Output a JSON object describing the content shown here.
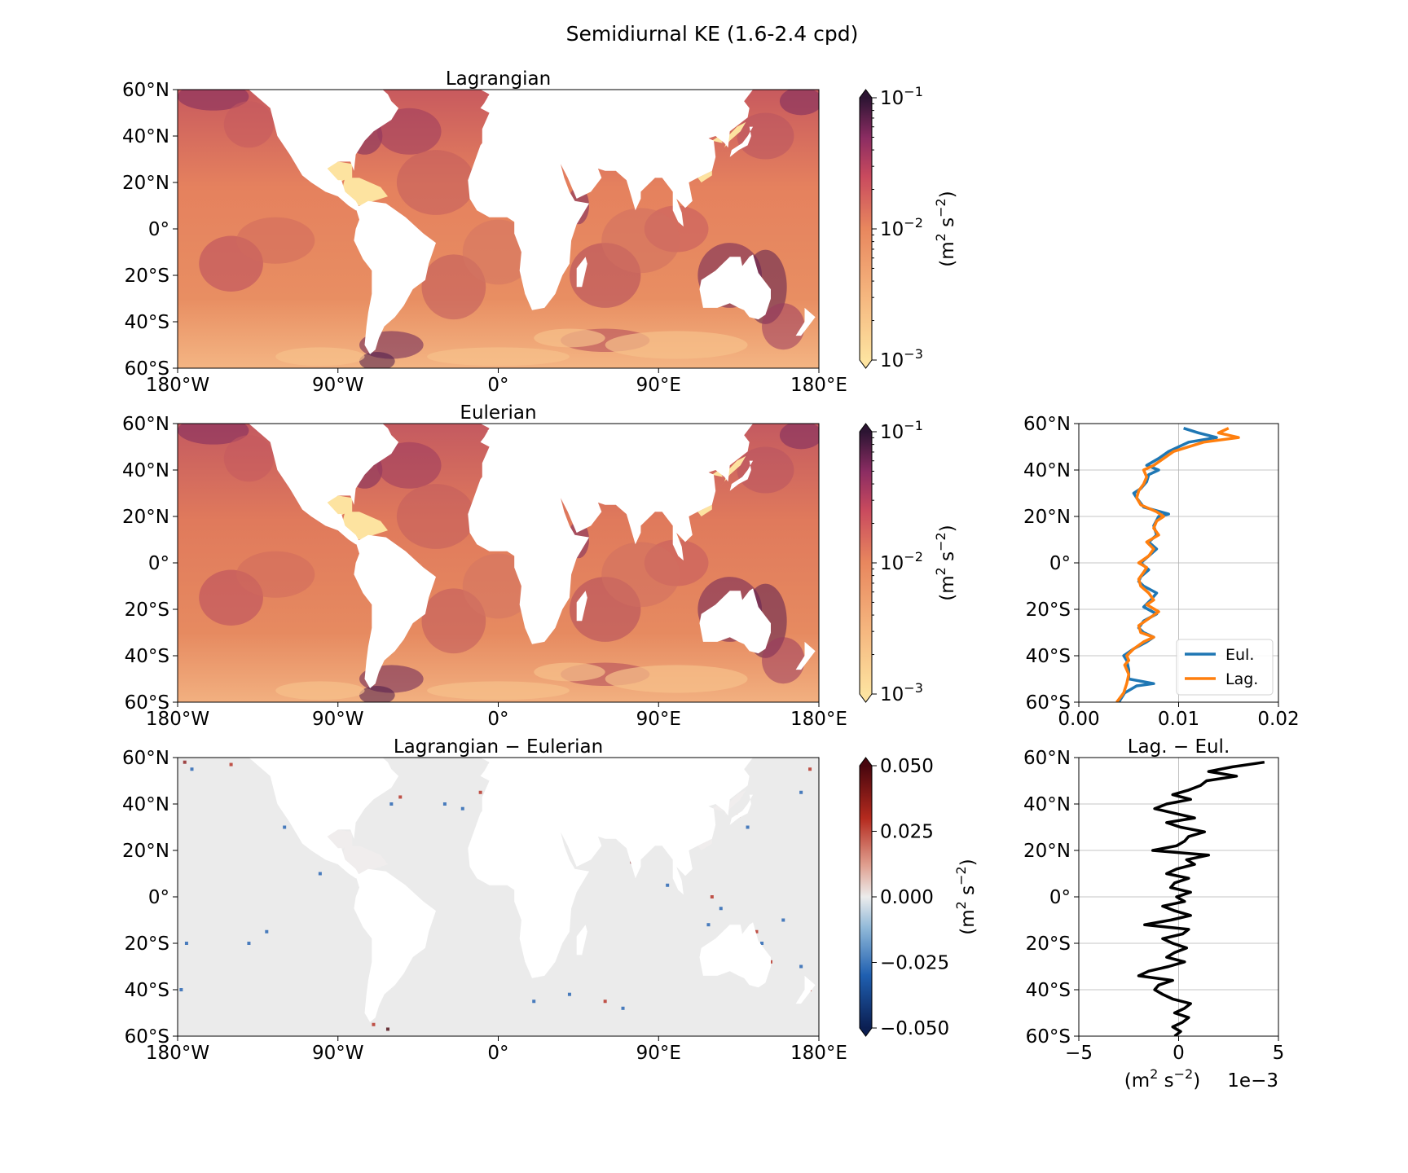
{
  "figure": {
    "suptitle": "Semidiurnal KE (1.6-2.4 cpd)"
  },
  "colors": {
    "eul": "#1f77b4",
    "lag": "#ff7f0e",
    "diff_line": "#000000",
    "ke_low": "#fde3a0",
    "ke_mid": "#e8875e",
    "ke_high": "#2c1432",
    "div_neg": "#0b1f52",
    "div_zero": "#ececec",
    "div_pos": "#48060e"
  },
  "ticks": {
    "lon": [
      "180°W",
      "90°W",
      "0°",
      "90°E",
      "180°E"
    ],
    "lat": [
      "60°N",
      "40°N",
      "20°N",
      "0°",
      "20°S",
      "40°S",
      "60°S"
    ]
  },
  "colorbars": {
    "ke": {
      "label_base": "(m",
      "label_sup1": "2",
      "label_mid": " s",
      "label_sup2": "−2",
      "label_end": ")",
      "ticks": [
        {
          "base": "10",
          "exp": "−1"
        },
        {
          "base": "10",
          "exp": "−2"
        },
        {
          "base": "10",
          "exp": "−3"
        }
      ]
    },
    "diff": {
      "label_base": "(m",
      "label_sup1": "2",
      "label_mid": " s",
      "label_sup2": "−2",
      "label_end": ")",
      "ticks": [
        "0.050",
        "0.025",
        "0.000",
        "−0.025",
        "−0.050"
      ]
    }
  },
  "chart_data": [
    {
      "type": "heatmap",
      "title": "Lagrangian",
      "x_range": [
        -180,
        180
      ],
      "y_range": [
        -60,
        60
      ],
      "colorscale": "log",
      "clim": [
        0.001,
        0.1
      ]
    },
    {
      "type": "heatmap",
      "title": "Eulerian",
      "x_range": [
        -180,
        180
      ],
      "y_range": [
        -60,
        60
      ],
      "colorscale": "log",
      "clim": [
        0.001,
        0.1
      ]
    },
    {
      "type": "heatmap",
      "title": "Lagrangian − Eulerian",
      "x_range": [
        -180,
        180
      ],
      "y_range": [
        -60,
        60
      ],
      "colorscale": "diverging",
      "clim": [
        -0.05,
        0.05
      ]
    },
    {
      "type": "line",
      "title": "",
      "xlim": [
        0,
        0.02
      ],
      "ylim": [
        -60,
        60
      ],
      "xticks": [
        "0.00",
        "0.01",
        "0.02"
      ],
      "grid": true,
      "legend": "lower-right",
      "series": [
        {
          "name": "Eul.",
          "lat": [
            -60,
            -56,
            -53,
            -52,
            -50,
            -46,
            -42,
            -40,
            -37,
            -34,
            -32,
            -30,
            -28,
            -25,
            -22,
            -19,
            -16,
            -13,
            -10,
            -8,
            -6,
            -3,
            0,
            3,
            6,
            9,
            12,
            16,
            20,
            21,
            24,
            28,
            30,
            32,
            35,
            38,
            40,
            42,
            45,
            48,
            52,
            54,
            56,
            58
          ],
          "values": [
            0.004,
            0.0046,
            0.0058,
            0.0075,
            0.005,
            0.005,
            0.0048,
            0.0045,
            0.0055,
            0.0068,
            0.0075,
            0.0065,
            0.006,
            0.0065,
            0.0078,
            0.0065,
            0.0072,
            0.0078,
            0.0065,
            0.006,
            0.0062,
            0.007,
            0.0062,
            0.007,
            0.0078,
            0.007,
            0.0078,
            0.0075,
            0.008,
            0.009,
            0.0065,
            0.0058,
            0.0055,
            0.0062,
            0.0068,
            0.007,
            0.008,
            0.0068,
            0.008,
            0.009,
            0.011,
            0.0138,
            0.012,
            0.0105
          ]
        },
        {
          "name": "Lag.",
          "lat": [
            -60,
            -56,
            -52,
            -48,
            -44,
            -42,
            -40,
            -37,
            -34,
            -32,
            -30,
            -27,
            -24,
            -21,
            -18,
            -16,
            -13,
            -10,
            -7,
            -4,
            -2,
            0,
            3,
            6,
            9,
            12,
            15,
            18,
            20,
            22,
            25,
            28,
            31,
            34,
            37,
            40,
            42,
            45,
            48,
            52,
            54,
            56,
            58
          ],
          "values": [
            0.0038,
            0.0045,
            0.0048,
            0.005,
            0.0046,
            0.005,
            0.0048,
            0.0055,
            0.0065,
            0.0075,
            0.0062,
            0.006,
            0.007,
            0.008,
            0.0068,
            0.0075,
            0.007,
            0.0062,
            0.006,
            0.0065,
            0.0068,
            0.006,
            0.007,
            0.0075,
            0.0068,
            0.008,
            0.0075,
            0.0078,
            0.0085,
            0.0078,
            0.0062,
            0.0058,
            0.006,
            0.0065,
            0.0068,
            0.0065,
            0.0075,
            0.0085,
            0.0095,
            0.0125,
            0.016,
            0.014,
            0.015
          ]
        }
      ]
    },
    {
      "type": "line",
      "title": "Lag. − Eul.",
      "xlim": [
        -5,
        5
      ],
      "ylim": [
        -60,
        60
      ],
      "xticks": [
        "−5",
        "0",
        "5"
      ],
      "xlabel_base": "(m",
      "xlabel_sup1": "2",
      "xlabel_mid": " s",
      "xlabel_sup2": "−2",
      "xlabel_end": ")",
      "offset_text": "1e−3",
      "grid": true,
      "series": [
        {
          "name": "",
          "lat": [
            -60,
            -58,
            -56,
            -54,
            -52,
            -50,
            -48,
            -46,
            -44,
            -42,
            -40,
            -38,
            -36,
            -34,
            -32,
            -30,
            -28,
            -26,
            -24,
            -22,
            -20,
            -18,
            -16,
            -14,
            -12,
            -10,
            -8,
            -6,
            -4,
            -2,
            0,
            2,
            4,
            6,
            8,
            10,
            12,
            14,
            16,
            18,
            20,
            22,
            24,
            26,
            28,
            30,
            32,
            34,
            36,
            38,
            40,
            42,
            44,
            46,
            48,
            50,
            52,
            54,
            56,
            58
          ],
          "values": [
            -0.2,
            0.1,
            -0.3,
            0.2,
            0.5,
            -0.2,
            0.3,
            0.6,
            -0.3,
            -0.8,
            -1.2,
            -1.0,
            -0.3,
            -2.0,
            -1.5,
            -0.5,
            0.3,
            -0.6,
            -0.2,
            0.4,
            -0.3,
            -0.8,
            0.2,
            0.5,
            -1.7,
            -0.4,
            0.6,
            -0.2,
            -0.8,
            0.3,
            -0.1,
            0.6,
            -0.4,
            -0.2,
            0.5,
            -0.6,
            -0.1,
            0.8,
            0.4,
            1.5,
            -1.3,
            -0.1,
            0.3,
            0.5,
            1.3,
            0.1,
            -0.6,
            0.8,
            -0.2,
            -1.2,
            -0.6,
            0.6,
            -0.3,
            0.5,
            1.1,
            1.4,
            2.9,
            1.5,
            2.7,
            4.3
          ]
        }
      ]
    }
  ]
}
